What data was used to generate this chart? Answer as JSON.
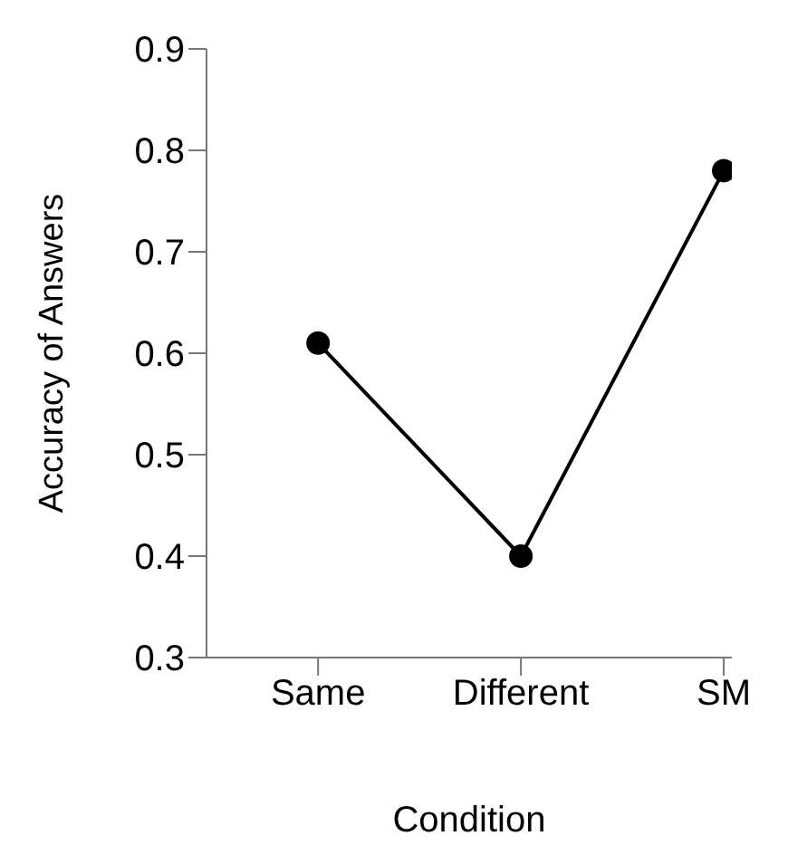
{
  "chart_data": {
    "type": "line",
    "xlabel": "Condition",
    "ylabel": "Accuracy of Answers",
    "categories": [
      "Same",
      "Different",
      "SM"
    ],
    "series": [
      {
        "color": "#000000",
        "values": [
          0.61,
          0.4,
          0.78
        ]
      }
    ],
    "ylim": [
      0.3,
      0.9
    ],
    "yticks": [
      0.3,
      0.4,
      0.5,
      0.6,
      0.7,
      0.8,
      0.9
    ],
    "grid": false,
    "legend": false,
    "marker": "circle",
    "line_style": "solid"
  }
}
